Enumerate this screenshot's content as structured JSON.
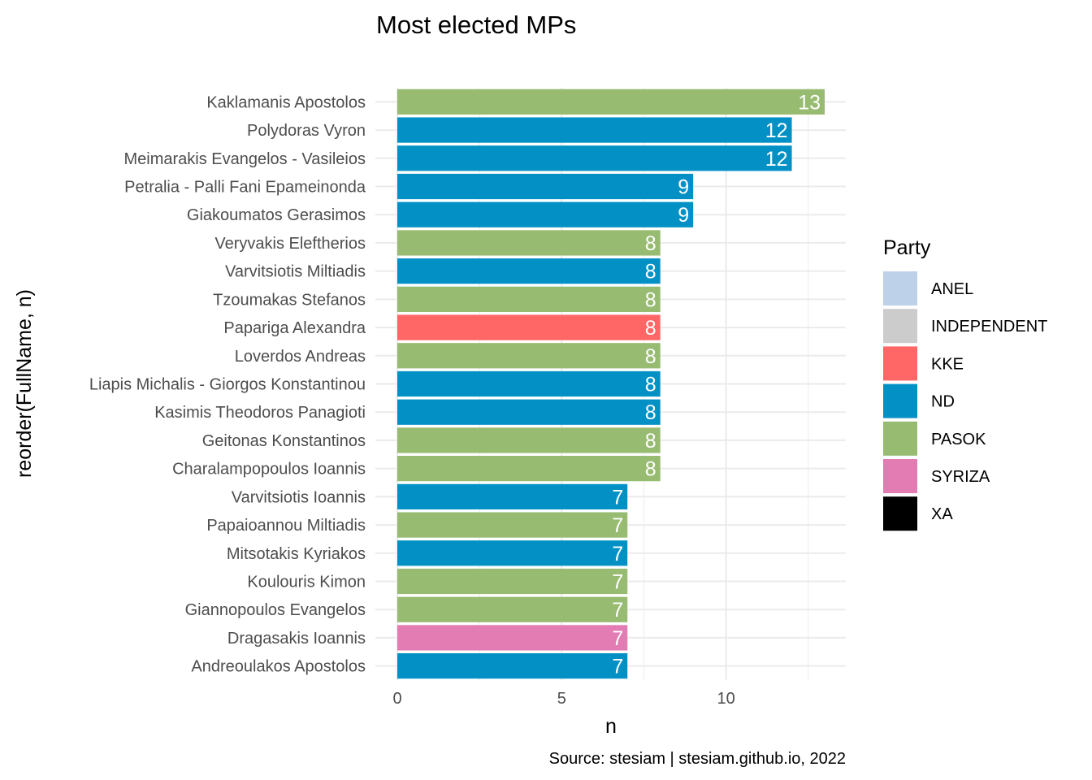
{
  "chart_data": {
    "type": "bar",
    "orientation": "horizontal",
    "title": "Most elected MPs",
    "xlabel": "n",
    "ylabel": "reorder(FullName, n)",
    "caption": "Source: stesiam | stesiam.github.io, 2022",
    "xlim": [
      0,
      13.6
    ],
    "xticks": [
      "0",
      "5",
      "10"
    ],
    "grid": true,
    "legend": {
      "title": "Party",
      "placement": "right",
      "entries": [
        {
          "label": "ANEL",
          "color": "#bdd1e8"
        },
        {
          "label": "INDEPENDENT",
          "color": "#cccccc"
        },
        {
          "label": "KKE",
          "color": "#ff6666"
        },
        {
          "label": "ND",
          "color": "#0391c5"
        },
        {
          "label": "PASOK",
          "color": "#98bb72"
        },
        {
          "label": "SYRIZA",
          "color": "#e27cb3"
        },
        {
          "label": "XA",
          "color": "#000000"
        }
      ]
    },
    "bars": [
      {
        "name": "Kaklamanis Apostolos",
        "value": 13,
        "label": "13",
        "party": "PASOK"
      },
      {
        "name": "Polydoras Vyron",
        "value": 12,
        "label": "12",
        "party": "ND"
      },
      {
        "name": "Meimarakis Evangelos - Vasileios",
        "value": 12,
        "label": "12",
        "party": "ND"
      },
      {
        "name": "Petralia - Palli Fani Epameinonda",
        "value": 9,
        "label": "9",
        "party": "ND"
      },
      {
        "name": "Giakoumatos Gerasimos",
        "value": 9,
        "label": "9",
        "party": "ND"
      },
      {
        "name": "Veryvakis Eleftherios",
        "value": 8,
        "label": "8",
        "party": "PASOK"
      },
      {
        "name": "Varvitsiotis Miltiadis",
        "value": 8,
        "label": "8",
        "party": "ND"
      },
      {
        "name": "Tzoumakas Stefanos",
        "value": 8,
        "label": "8",
        "party": "PASOK"
      },
      {
        "name": "Papariga Alexandra",
        "value": 8,
        "label": "8",
        "party": "KKE"
      },
      {
        "name": "Loverdos Andreas",
        "value": 8,
        "label": "8",
        "party": "PASOK"
      },
      {
        "name": "Liapis Michalis - Giorgos Konstantinou",
        "value": 8,
        "label": "8",
        "party": "ND"
      },
      {
        "name": "Kasimis Theodoros Panagioti",
        "value": 8,
        "label": "8",
        "party": "ND"
      },
      {
        "name": "Geitonas Konstantinos",
        "value": 8,
        "label": "8",
        "party": "PASOK"
      },
      {
        "name": "Charalampopoulos Ioannis",
        "value": 8,
        "label": "8",
        "party": "PASOK"
      },
      {
        "name": "Varvitsiotis Ioannis",
        "value": 7,
        "label": "7",
        "party": "ND"
      },
      {
        "name": "Papaioannou Miltiadis",
        "value": 7,
        "label": "7",
        "party": "PASOK"
      },
      {
        "name": "Mitsotakis Kyriakos",
        "value": 7,
        "label": "7",
        "party": "ND"
      },
      {
        "name": "Koulouris Kimon",
        "value": 7,
        "label": "7",
        "party": "PASOK"
      },
      {
        "name": "Giannopoulos Evangelos",
        "value": 7,
        "label": "7",
        "party": "PASOK"
      },
      {
        "name": "Dragasakis Ioannis",
        "value": 7,
        "label": "7",
        "party": "SYRIZA"
      },
      {
        "name": "Andreoulakos Apostolos",
        "value": 7,
        "label": "7",
        "party": "ND"
      }
    ]
  }
}
